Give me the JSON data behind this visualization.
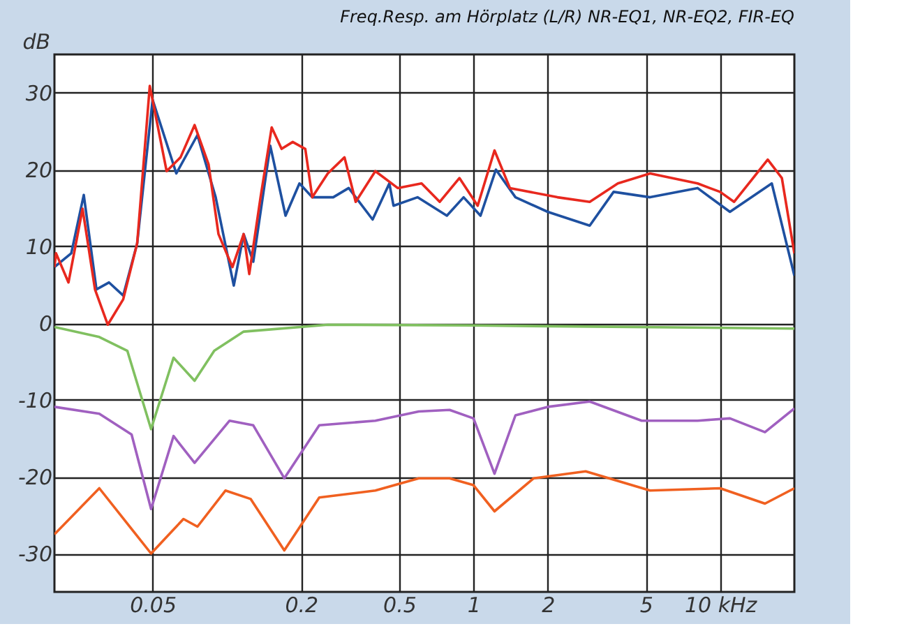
{
  "chart_data": {
    "type": "line",
    "title": "Freq.Resp. am Hörplatz (L/R) NR-EQ1, NR-EQ2, FIR-EQ",
    "ylabel": "dB",
    "log": "x",
    "grid": true,
    "marker": "none",
    "line_style": "solid",
    "xlim": [
      0.02,
      20
    ],
    "ylim": [
      -35,
      35
    ],
    "xticks": [
      0.05,
      0.2,
      0.5,
      1,
      2,
      5,
      {
        "value": 10,
        "label": "10 kHz"
      }
    ],
    "yticks": [
      -30,
      -20,
      -10,
      0,
      10,
      20,
      30
    ],
    "series": [
      {
        "color": "#1e50a0",
        "x": [
          0.02,
          0.0234,
          0.0263,
          0.0296,
          0.0333,
          0.038,
          0.0433,
          0.05,
          0.0624,
          0.076,
          0.0901,
          0.1067,
          0.117,
          0.128,
          0.15,
          0.173,
          0.197,
          0.222,
          0.27,
          0.312,
          0.39,
          0.456,
          0.474,
          0.593,
          0.78,
          0.912,
          1.068,
          1.233,
          1.48,
          2.0,
          2.96,
          3.7,
          5.2,
          8.1,
          10.96,
          16.2,
          20
        ],
        "values": [
          7.3,
          9.1,
          16.7,
          4.4,
          5.3,
          3.6,
          10.4,
          29.1,
          19.5,
          24.5,
          16.4,
          4.9,
          11.6,
          8.0,
          23.1,
          14.0,
          18.2,
          16.4,
          16.4,
          17.6,
          13.5,
          18.2,
          15.3,
          16.4,
          14.0,
          16.4,
          14.0,
          20.0,
          16.4,
          14.5,
          12.7,
          17.1,
          16.4,
          17.6,
          14.5,
          18.2,
          6.2
        ]
      },
      {
        "color": "#e8281e",
        "x": [
          0.02,
          0.0203,
          0.0228,
          0.026,
          0.0292,
          0.0329,
          0.038,
          0.0433,
          0.0487,
          0.057,
          0.0649,
          0.074,
          0.0843,
          0.0925,
          0.1054,
          0.117,
          0.1233,
          0.137,
          0.152,
          0.1667,
          0.185,
          0.208,
          0.222,
          0.2566,
          0.3,
          0.333,
          0.4,
          0.493,
          0.616,
          0.73,
          0.877,
          1.04,
          1.217,
          1.405,
          2.19,
          2.96,
          3.85,
          5.2,
          8.1,
          10,
          11.4,
          15.6,
          17.8,
          20
        ],
        "values": [
          7.3,
          9.1,
          5.3,
          14.9,
          4.4,
          -0.2,
          3.1,
          10.4,
          30.9,
          19.8,
          21.6,
          25.8,
          20.7,
          11.6,
          7.3,
          11.6,
          6.4,
          16.4,
          25.5,
          22.7,
          23.6,
          22.7,
          16.4,
          19.5,
          21.6,
          15.8,
          19.8,
          17.6,
          18.2,
          15.8,
          18.9,
          15.3,
          22.5,
          17.6,
          16.4,
          15.8,
          18.2,
          19.5,
          18.2,
          17.1,
          15.8,
          21.3,
          18.9,
          9.1
        ]
      },
      {
        "color": "#80c060",
        "x": [
          0.02,
          0.0304,
          0.0395,
          0.0493,
          0.0608,
          0.074,
          0.0889,
          0.117,
          0.2566,
          1,
          20
        ],
        "values": [
          -0.5,
          -1.8,
          -3.6,
          -13.8,
          -4.5,
          -7.5,
          -3.6,
          -1.1,
          -0.2,
          -0.3,
          -0.7
        ]
      },
      {
        "color": "#a060c0",
        "x": [
          0.02,
          0.0304,
          0.0411,
          0.0493,
          0.0608,
          0.074,
          0.1026,
          0.128,
          0.171,
          0.237,
          0.4,
          0.6,
          0.8,
          1,
          1.217,
          1.48,
          2.0,
          2.96,
          4.81,
          8.1,
          10.96,
          15.2,
          20
        ],
        "values": [
          -10.9,
          -11.8,
          -14.5,
          -24.2,
          -14.7,
          -18.2,
          -12.7,
          -13.3,
          -20.2,
          -13.3,
          -12.7,
          -11.5,
          -11.3,
          -12.4,
          -19.6,
          -12.0,
          -10.9,
          -10.2,
          -12.7,
          -12.7,
          -12.4,
          -14.2,
          -11.1
        ]
      },
      {
        "color": "#f06020",
        "x": [
          0.02,
          0.0304,
          0.0493,
          0.0667,
          0.076,
          0.0987,
          0.125,
          0.171,
          0.237,
          0.4,
          0.6,
          0.8,
          1,
          1.217,
          1.755,
          2.85,
          5.2,
          10,
          15.2,
          20
        ],
        "values": [
          -27.5,
          -21.5,
          -30.0,
          -25.5,
          -26.5,
          -21.8,
          -22.9,
          -29.6,
          -22.7,
          -21.8,
          -20.2,
          -20.2,
          -21.1,
          -24.5,
          -20.2,
          -19.3,
          -21.8,
          -21.5,
          -23.5,
          -21.5
        ]
      }
    ]
  }
}
